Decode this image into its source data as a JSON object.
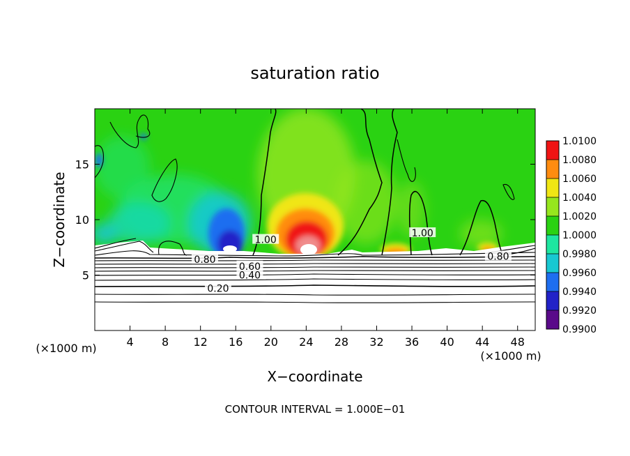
{
  "chart_data": {
    "type": "heatmap",
    "title": "saturation ratio",
    "xlabel": "X−coordinate",
    "ylabel": "Z−coordinate",
    "x_unit_left": "(×1000 m)",
    "x_unit_right": "(×1000 m)",
    "xlim": [
      0,
      50
    ],
    "ylim": [
      0,
      20
    ],
    "x_ticks": [
      4,
      8,
      12,
      16,
      20,
      24,
      28,
      32,
      36,
      40,
      44,
      48
    ],
    "y_ticks": [
      5,
      10,
      15
    ],
    "colorbar": {
      "levels": [
        0.99,
        0.992,
        0.994,
        0.996,
        0.998,
        1.0,
        1.002,
        1.004,
        1.006,
        1.008,
        1.01
      ],
      "labels": [
        "0.9900",
        "0.9920",
        "0.9940",
        "0.9960",
        "0.9980",
        "1.0000",
        "1.0020",
        "1.0040",
        "1.0060",
        "1.0080",
        "1.0100"
      ],
      "colors": [
        "#5a0a8a",
        "#2222c8",
        "#1e6ef0",
        "#18c8d2",
        "#1ee6a0",
        "#2ad212",
        "#96e61e",
        "#f0e614",
        "#ff8c10",
        "#f01414",
        "#f08c8c"
      ]
    },
    "contour_labels": [
      {
        "text": "0.20",
        "x": 14.0,
        "y": 3.8
      },
      {
        "text": "0.40",
        "x": 17.6,
        "y": 5.0
      },
      {
        "text": "0.60",
        "x": 17.6,
        "y": 5.8
      },
      {
        "text": "0.80",
        "x": 12.5,
        "y": 6.4
      },
      {
        "text": "1.00",
        "x": 19.4,
        "y": 8.2
      },
      {
        "text": "1.00",
        "x": 37.2,
        "y": 8.8
      },
      {
        "text": "0.80",
        "x": 45.8,
        "y": 6.7
      }
    ],
    "contour_interval_text": "CONTOUR INTERVAL = 1.000E−01"
  }
}
